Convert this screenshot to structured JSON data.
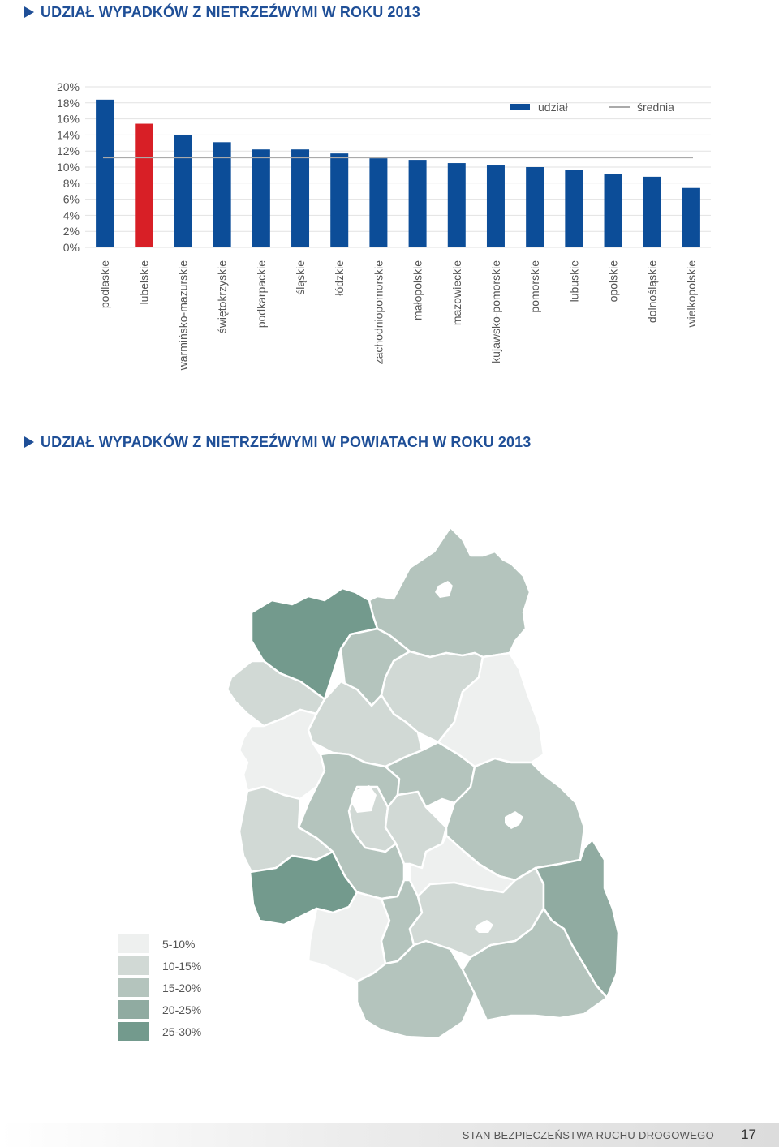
{
  "titles": {
    "chart": "UDZIAŁ WYPADKÓW Z NIETRZEŹWYMI W ROKU 2013",
    "map": "UDZIAŁ WYPADKÓW Z NIETRZEŹWYMI W POWIATACH W ROKU 2013"
  },
  "chart_data": {
    "type": "bar",
    "title": "UDZIAŁ WYPADKÓW Z NIETRZEŹWYMI W ROKU 2013",
    "categories": [
      "podlaskie",
      "lubelskie",
      "warmińsko-mazurskie",
      "świętokrzyskie",
      "podkarpackie",
      "śląskie",
      "łódzkie",
      "zachodniopomorskie",
      "małopolskie",
      "mazowieckie",
      "kujawsko-pomorskie",
      "pomorskie",
      "lubuskie",
      "opolskie",
      "dolnośląskie",
      "wielkopolskie"
    ],
    "series": [
      {
        "name": "udział",
        "values": [
          18.4,
          15.4,
          14.0,
          13.1,
          12.2,
          12.2,
          11.7,
          11.1,
          10.9,
          10.5,
          10.2,
          10.0,
          9.6,
          9.1,
          8.8,
          7.4
        ]
      }
    ],
    "average": 11.2,
    "ylim": [
      0,
      20
    ],
    "yticks": [
      "0%",
      "2%",
      "4%",
      "6%",
      "8%",
      "10%",
      "12%",
      "14%",
      "16%",
      "18%",
      "20%"
    ],
    "legend": {
      "bar": "udział",
      "line": "średnia"
    },
    "legend_placement": "top-right",
    "highlight_category": "lubelskie",
    "colors": {
      "bar": "#0c4d98",
      "highlight": "#d81f26",
      "average": "#aaaaaa",
      "grid": "#e2e2e2"
    },
    "grid": true
  },
  "map_legend": [
    {
      "label": "5-10%",
      "color": "#eef0ef"
    },
    {
      "label": "10-15%",
      "color": "#d1d9d5"
    },
    {
      "label": "15-20%",
      "color": "#b4c4bd"
    },
    {
      "label": "20-25%",
      "color": "#90aba1"
    },
    {
      "label": "25-30%",
      "color": "#739a8d"
    }
  ],
  "footer": {
    "text": "STAN BEZPIECZEŃSTWA RUCHU DROGOWEGO",
    "page": "17"
  }
}
